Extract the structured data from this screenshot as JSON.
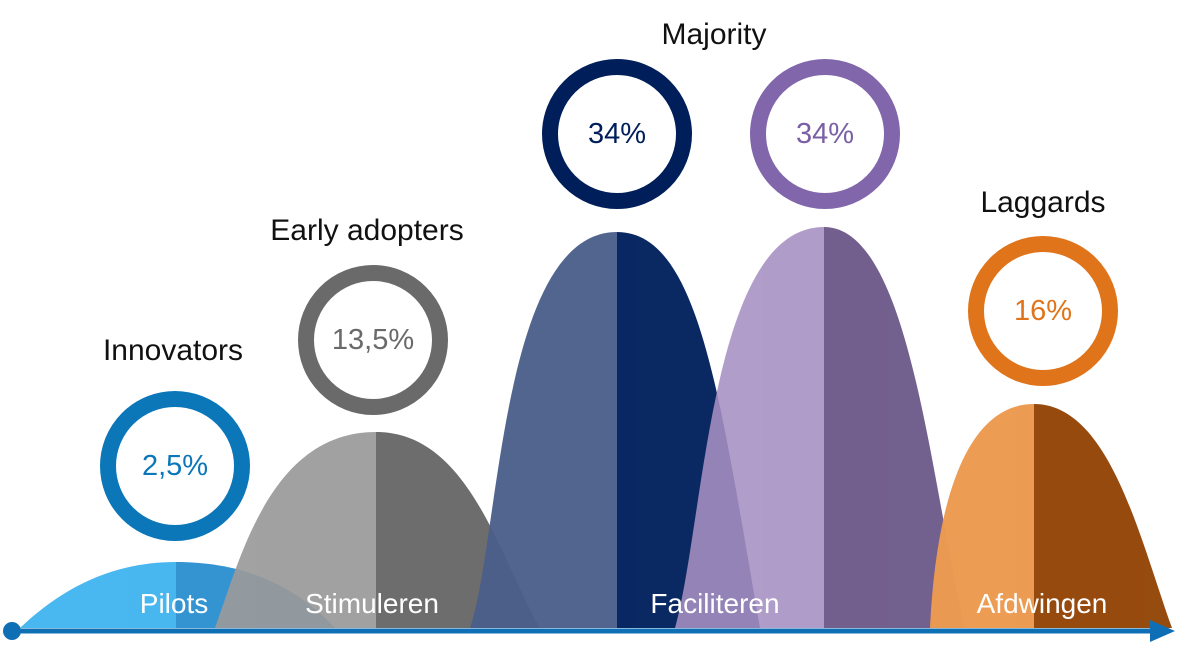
{
  "diagram": {
    "type": "adoption-curve",
    "axis": {
      "color": "#0f6fb5"
    },
    "segments": [
      {
        "id": "innovators",
        "title": "Innovators",
        "percentage": "2,5%",
        "phase": "Pilots",
        "ring_color": "#0b76b8",
        "text_color": "#0b76b8",
        "left_color": "#3fb4f0",
        "right_color": "#2a8fd0"
      },
      {
        "id": "early-adopters",
        "title": "Early adopters",
        "percentage": "13,5%",
        "phase": "Stimuleren",
        "ring_color": "#6a6a6a",
        "text_color": "#6a6a6a",
        "left_color": "#9a9a9a",
        "right_color": "#616161"
      },
      {
        "id": "early-majority",
        "title": "Majority",
        "percentage": "34%",
        "phase": "Faciliteren",
        "ring_color": "#001e5a",
        "text_color": "#001e5a",
        "left_color": "#4a5f8a",
        "right_color": "#001f5c"
      },
      {
        "id": "late-majority",
        "title": "",
        "percentage": "34%",
        "phase": "",
        "ring_color": "#8166ab",
        "text_color": "#7a5fa5",
        "left_color": "#a68fc2",
        "right_color": "#5f4a7e"
      },
      {
        "id": "laggards",
        "title": "Laggards",
        "percentage": "16%",
        "phase": "Afdwingen",
        "ring_color": "#e0741b",
        "text_color": "#e0741b",
        "left_color": "#ec9a50",
        "right_color": "#94470a"
      }
    ]
  }
}
